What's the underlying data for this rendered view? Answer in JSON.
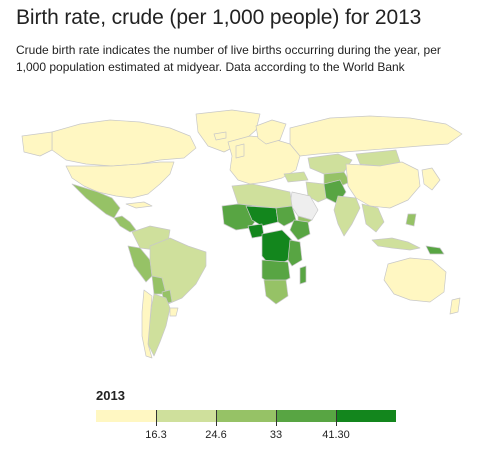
{
  "header": {
    "title": "Birth rate, crude (per 1,000 people) for 2013",
    "subtitle": "Crude birth rate indicates the number of live births occurring during the year, per 1,000 population estimated at midyear. Data according to the World Bank"
  },
  "legend": {
    "year": "2013",
    "bins": [
      {
        "color": "#fff7c2"
      },
      {
        "color": "#cfe09c"
      },
      {
        "color": "#96c266"
      },
      {
        "color": "#58a543"
      },
      {
        "color": "#13861d"
      }
    ],
    "breaks": [
      "16.3",
      "24.6",
      "33",
      "41.30"
    ]
  },
  "map": {
    "no_data_color": "#eeeeee",
    "border_color": "#c8c8c8"
  }
}
